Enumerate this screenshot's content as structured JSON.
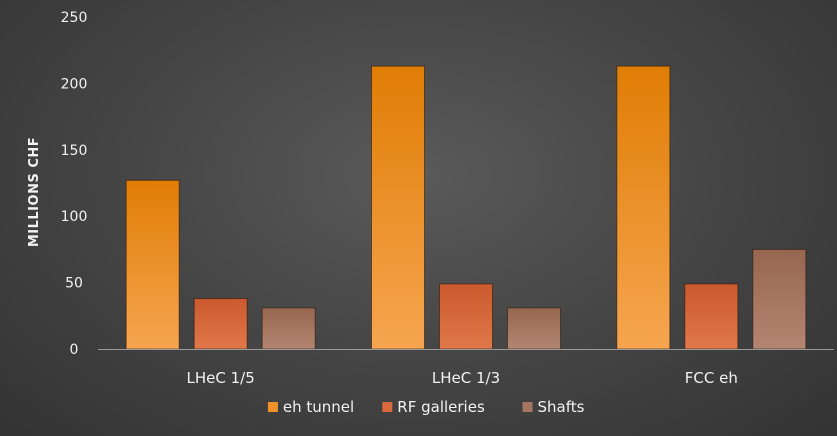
{
  "chart_data": {
    "type": "bar",
    "title": "",
    "xlabel": "",
    "ylabel": "MILLIONS CHF",
    "ylim": [
      0,
      250
    ],
    "yticks": [
      0,
      50,
      100,
      150,
      200,
      250
    ],
    "grid": false,
    "legend_position": "bottom",
    "categories": [
      "LHeC 1/5",
      "LHeC 1/3",
      "FCC eh"
    ],
    "series": [
      {
        "name": "eh tunnel",
        "values": [
          127,
          213,
          213
        ],
        "color": "#f0922c"
      },
      {
        "name": "RF galleries",
        "values": [
          38,
          49,
          49
        ],
        "color": "#d9683c"
      },
      {
        "name": "Shafts",
        "values": [
          31,
          31,
          75
        ],
        "color": "#a57560"
      }
    ]
  }
}
